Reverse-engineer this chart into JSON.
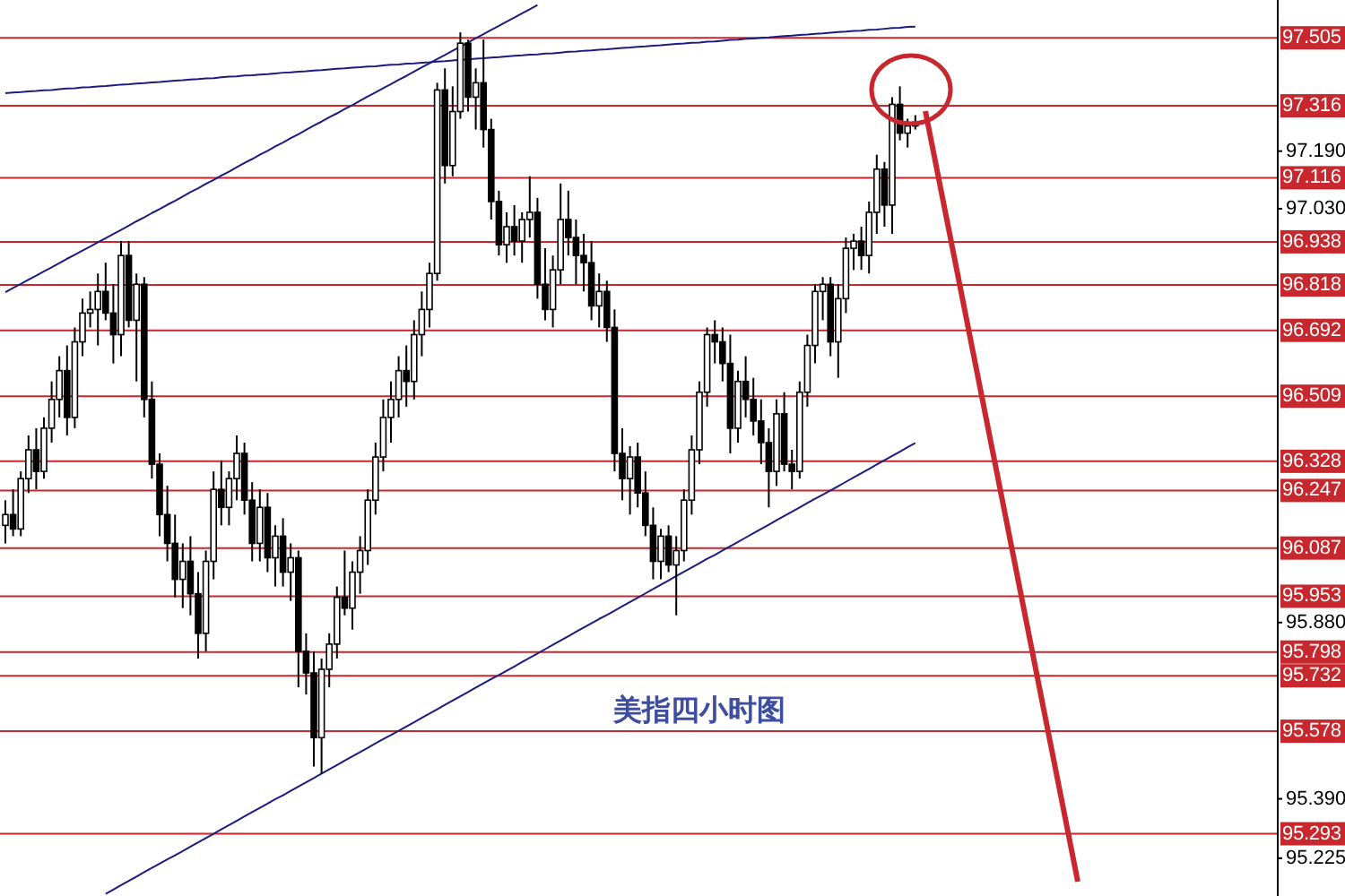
{
  "chart_data": {
    "type": "candlestick",
    "title": "美指四小时图",
    "categories": [
      null,
      null,
      null,
      null,
      null,
      null,
      null,
      null,
      null,
      null,
      null,
      null,
      null,
      null,
      null,
      null,
      null,
      null,
      null,
      null,
      null,
      null,
      null,
      null,
      null,
      null,
      null,
      null,
      null,
      null,
      null,
      null,
      null,
      null,
      null,
      null,
      null,
      null,
      null,
      null,
      null,
      null,
      null,
      null,
      null,
      null,
      null,
      null,
      null,
      null,
      null,
      null,
      null,
      null,
      null,
      null,
      null,
      null,
      null,
      null,
      null,
      null,
      null,
      null,
      null,
      null,
      null,
      null,
      null,
      null,
      null,
      null,
      null,
      null,
      null,
      null,
      null,
      null,
      null,
      null,
      null,
      null,
      null,
      null,
      null,
      null,
      null,
      null,
      null,
      null,
      null,
      null,
      null,
      null,
      null,
      null,
      null,
      null,
      null,
      null,
      null,
      null,
      null,
      null,
      null,
      null,
      null,
      null,
      null,
      null,
      null,
      null,
      null,
      null,
      null,
      null,
      null,
      null,
      null
    ],
    "ohlc": [
      [
        96.15,
        96.22,
        96.1,
        96.18
      ],
      [
        96.18,
        96.25,
        96.12,
        96.14
      ],
      [
        96.14,
        96.3,
        96.12,
        96.28
      ],
      [
        96.28,
        96.4,
        96.24,
        96.36
      ],
      [
        96.36,
        96.42,
        96.25,
        96.3
      ],
      [
        96.3,
        96.45,
        96.28,
        96.42
      ],
      [
        96.42,
        96.55,
        96.38,
        96.5
      ],
      [
        96.5,
        96.62,
        96.45,
        96.58
      ],
      [
        96.58,
        96.65,
        96.4,
        96.45
      ],
      [
        96.45,
        96.7,
        96.42,
        96.66
      ],
      [
        96.66,
        96.78,
        96.62,
        96.74
      ],
      [
        96.74,
        96.8,
        96.7,
        96.75
      ],
      [
        96.75,
        96.85,
        96.65,
        96.8
      ],
      [
        96.8,
        96.88,
        96.72,
        96.74
      ],
      [
        96.74,
        96.82,
        96.6,
        96.68
      ],
      [
        96.68,
        96.94,
        96.62,
        96.9
      ],
      [
        96.9,
        96.94,
        96.7,
        96.72
      ],
      [
        96.72,
        96.85,
        96.55,
        96.82
      ],
      [
        96.82,
        96.84,
        96.45,
        96.5
      ],
      [
        96.5,
        96.55,
        96.28,
        96.32
      ],
      [
        96.32,
        96.35,
        96.12,
        96.18
      ],
      [
        96.18,
        96.26,
        96.05,
        96.1
      ],
      [
        96.1,
        96.18,
        95.95,
        96.0
      ],
      [
        96.0,
        96.1,
        95.92,
        96.05
      ],
      [
        96.05,
        96.12,
        95.9,
        95.96
      ],
      [
        95.96,
        96.02,
        95.78,
        95.85
      ],
      [
        95.85,
        96.08,
        95.8,
        96.05
      ],
      [
        96.05,
        96.3,
        96.0,
        96.25
      ],
      [
        96.25,
        96.33,
        96.15,
        96.2
      ],
      [
        96.2,
        96.3,
        96.15,
        96.28
      ],
      [
        96.28,
        96.4,
        96.22,
        96.35
      ],
      [
        96.35,
        96.38,
        96.18,
        96.22
      ],
      [
        96.22,
        96.27,
        96.05,
        96.1
      ],
      [
        96.1,
        96.25,
        96.05,
        96.2
      ],
      [
        96.2,
        96.24,
        96.02,
        96.06
      ],
      [
        96.06,
        96.15,
        95.98,
        96.12
      ],
      [
        96.12,
        96.17,
        95.98,
        96.02
      ],
      [
        96.02,
        96.1,
        95.94,
        96.06
      ],
      [
        96.06,
        96.08,
        95.7,
        95.8
      ],
      [
        95.8,
        95.85,
        95.68,
        95.74
      ],
      [
        95.74,
        95.8,
        95.48,
        95.56
      ],
      [
        95.56,
        95.78,
        95.46,
        95.75
      ],
      [
        95.75,
        95.85,
        95.7,
        95.82
      ],
      [
        95.82,
        95.98,
        95.78,
        95.95
      ],
      [
        95.95,
        96.08,
        95.9,
        95.92
      ],
      [
        95.92,
        96.05,
        95.86,
        96.02
      ],
      [
        96.02,
        96.12,
        95.96,
        96.08
      ],
      [
        96.08,
        96.25,
        96.04,
        96.22
      ],
      [
        96.22,
        96.38,
        96.18,
        96.34
      ],
      [
        96.34,
        96.5,
        96.3,
        96.45
      ],
      [
        96.45,
        96.55,
        96.38,
        96.5
      ],
      [
        96.5,
        96.62,
        96.45,
        96.58
      ],
      [
        96.58,
        96.65,
        96.48,
        96.55
      ],
      [
        96.55,
        96.72,
        96.5,
        96.68
      ],
      [
        96.68,
        96.8,
        96.62,
        96.75
      ],
      [
        96.75,
        96.88,
        96.7,
        96.85
      ],
      [
        96.85,
        97.38,
        96.83,
        97.36
      ],
      [
        97.36,
        97.42,
        97.1,
        97.15
      ],
      [
        97.15,
        97.37,
        97.12,
        97.3
      ],
      [
        97.3,
        97.52,
        97.28,
        97.49
      ],
      [
        97.49,
        97.5,
        97.3,
        97.34
      ],
      [
        97.34,
        97.42,
        97.25,
        97.38
      ],
      [
        97.38,
        97.5,
        97.2,
        97.25
      ],
      [
        97.25,
        97.28,
        97.0,
        97.05
      ],
      [
        97.05,
        97.08,
        96.9,
        96.93
      ],
      [
        96.93,
        97.02,
        96.88,
        96.98
      ],
      [
        96.98,
        97.04,
        96.9,
        96.94
      ],
      [
        96.94,
        97.02,
        96.88,
        97.0
      ],
      [
        97.0,
        97.12,
        96.95,
        97.02
      ],
      [
        97.02,
        97.06,
        96.78,
        96.82
      ],
      [
        96.82,
        96.92,
        96.72,
        96.75
      ],
      [
        96.75,
        96.9,
        96.7,
        96.86
      ],
      [
        96.86,
        97.1,
        96.82,
        97.0
      ],
      [
        97.0,
        97.08,
        96.9,
        96.95
      ],
      [
        96.95,
        97.0,
        96.82,
        96.9
      ],
      [
        96.9,
        96.96,
        96.8,
        96.88
      ],
      [
        96.88,
        96.94,
        96.72,
        96.76
      ],
      [
        96.76,
        96.85,
        96.7,
        96.8
      ],
      [
        96.8,
        96.83,
        96.66,
        96.7
      ],
      [
        96.7,
        96.75,
        96.3,
        96.35
      ],
      [
        96.35,
        96.42,
        96.22,
        96.28
      ],
      [
        96.28,
        96.37,
        96.18,
        96.34
      ],
      [
        96.34,
        96.38,
        96.2,
        96.24
      ],
      [
        96.24,
        96.3,
        96.12,
        96.15
      ],
      [
        96.15,
        96.2,
        96.0,
        96.05
      ],
      [
        96.05,
        96.14,
        96.0,
        96.12
      ],
      [
        96.12,
        96.15,
        96.02,
        96.04
      ],
      [
        96.04,
        96.12,
        95.9,
        96.08
      ],
      [
        96.08,
        96.25,
        96.05,
        96.22
      ],
      [
        96.22,
        96.4,
        96.18,
        96.36
      ],
      [
        96.36,
        96.55,
        96.32,
        96.52
      ],
      [
        96.52,
        96.7,
        96.48,
        96.68
      ],
      [
        96.68,
        96.72,
        96.6,
        96.66
      ],
      [
        96.66,
        96.7,
        96.55,
        96.6
      ],
      [
        96.6,
        96.68,
        96.35,
        96.42
      ],
      [
        96.42,
        96.58,
        96.38,
        96.55
      ],
      [
        96.55,
        96.62,
        96.45,
        96.5
      ],
      [
        96.5,
        96.56,
        96.4,
        96.44
      ],
      [
        96.44,
        96.5,
        96.32,
        96.38
      ],
      [
        96.38,
        96.42,
        96.2,
        96.3
      ],
      [
        96.3,
        96.5,
        96.26,
        96.46
      ],
      [
        96.46,
        96.52,
        96.3,
        96.32
      ],
      [
        96.32,
        96.36,
        96.25,
        96.3
      ],
      [
        96.3,
        96.55,
        96.28,
        96.52
      ],
      [
        96.52,
        96.68,
        96.48,
        96.65
      ],
      [
        96.65,
        96.82,
        96.6,
        96.8
      ],
      [
        96.8,
        96.84,
        96.72,
        96.82
      ],
      [
        96.82,
        96.84,
        96.62,
        96.66
      ],
      [
        96.66,
        96.82,
        96.56,
        96.78
      ],
      [
        96.78,
        96.95,
        96.74,
        96.92
      ],
      [
        96.92,
        96.96,
        96.86,
        96.94
      ],
      [
        96.94,
        96.98,
        96.86,
        96.9
      ],
      [
        96.9,
        97.05,
        96.85,
        97.02
      ],
      [
        97.02,
        97.18,
        96.96,
        97.14
      ],
      [
        97.14,
        97.16,
        96.98,
        97.04
      ],
      [
        97.04,
        97.34,
        96.96,
        97.32
      ],
      [
        97.32,
        97.37,
        97.22,
        97.24
      ],
      [
        97.24,
        97.28,
        97.2,
        97.26
      ],
      [
        97.26,
        97.29,
        97.25,
        97.27
      ]
    ],
    "series": [
      {
        "type": "line",
        "color": "#1c1c80",
        "values": [
          96.798,
          96.81,
          96.821,
          96.833,
          96.844,
          96.856,
          96.867,
          96.879,
          96.891,
          96.902,
          96.914,
          96.925,
          96.937,
          96.948,
          96.96,
          96.971,
          96.983,
          96.995,
          97.006,
          97.018,
          97.029,
          97.041,
          97.052,
          97.064,
          97.076,
          97.087,
          97.099,
          97.11,
          97.122,
          97.133,
          97.145,
          97.157,
          97.168,
          97.18,
          97.191,
          97.203,
          97.214,
          97.226,
          97.237,
          97.249,
          97.261,
          97.272,
          97.284,
          97.295,
          97.307,
          97.318,
          97.33,
          97.342,
          97.353,
          97.365,
          97.376,
          97.388,
          97.399,
          97.411,
          97.423,
          97.434,
          97.446,
          97.457,
          97.469,
          97.48,
          97.492,
          97.504,
          97.515,
          97.527,
          97.538,
          97.55,
          97.561,
          97.573,
          97.584,
          97.596,
          null,
          null,
          null,
          null,
          null,
          null,
          null,
          null,
          null,
          null,
          null,
          null,
          null,
          null,
          null,
          null,
          null,
          null,
          null,
          null,
          null,
          null,
          null,
          null,
          null,
          null,
          null,
          null,
          null,
          null,
          null,
          null,
          null,
          null,
          null,
          null,
          null,
          null,
          null,
          null,
          null,
          null,
          null,
          null,
          null,
          null,
          null,
          null,
          null
        ]
      },
      {
        "type": "line",
        "color": "#1c1c80",
        "values": [
          97.351,
          97.353,
          97.354,
          97.356,
          97.357,
          97.359,
          97.36,
          97.362,
          97.364,
          97.365,
          97.367,
          97.368,
          97.37,
          97.371,
          97.373,
          97.375,
          97.376,
          97.378,
          97.379,
          97.381,
          97.382,
          97.384,
          97.386,
          97.387,
          97.389,
          97.39,
          97.392,
          97.393,
          97.395,
          97.397,
          97.398,
          97.4,
          97.401,
          97.403,
          97.404,
          97.406,
          97.408,
          97.409,
          97.411,
          97.412,
          97.414,
          97.415,
          97.417,
          97.419,
          97.42,
          97.422,
          97.423,
          97.425,
          97.426,
          97.428,
          97.43,
          97.431,
          97.433,
          97.434,
          97.436,
          97.437,
          97.439,
          97.44,
          97.442,
          97.444,
          97.445,
          97.447,
          97.448,
          97.45,
          97.451,
          97.453,
          97.455,
          97.456,
          97.458,
          97.459,
          97.461,
          97.462,
          97.464,
          97.466,
          97.467,
          97.469,
          97.47,
          97.472,
          97.473,
          97.475,
          97.477,
          97.478,
          97.48,
          97.481,
          97.483,
          97.484,
          97.486,
          97.488,
          97.489,
          97.491,
          97.492,
          97.494,
          97.495,
          97.497,
          97.499,
          97.5,
          97.502,
          97.503,
          97.505,
          97.506,
          97.508,
          97.51,
          97.511,
          97.513,
          97.514,
          97.516,
          97.517,
          97.519,
          97.521,
          97.522,
          97.524,
          97.525,
          97.527,
          97.528,
          97.53,
          97.532,
          97.533,
          97.535,
          97.536
        ]
      },
      {
        "type": "line",
        "color": "#1c1c80",
        "values": [
          null,
          null,
          null,
          null,
          null,
          null,
          null,
          null,
          null,
          null,
          null,
          null,
          null,
          95.126,
          95.138,
          95.15,
          95.162,
          95.174,
          95.186,
          95.198,
          95.21,
          95.222,
          95.233,
          95.245,
          95.257,
          95.269,
          95.281,
          95.293,
          95.305,
          95.317,
          95.329,
          95.341,
          95.353,
          95.365,
          95.377,
          95.389,
          95.4,
          95.412,
          95.424,
          95.436,
          95.448,
          95.46,
          95.472,
          95.484,
          95.496,
          95.508,
          95.52,
          95.532,
          95.544,
          95.556,
          95.567,
          95.579,
          95.591,
          95.603,
          95.615,
          95.627,
          95.639,
          95.651,
          95.663,
          95.675,
          95.687,
          95.699,
          95.711,
          95.723,
          95.734,
          95.746,
          95.758,
          95.77,
          95.782,
          95.794,
          95.806,
          95.818,
          95.83,
          95.842,
          95.854,
          95.866,
          95.878,
          95.89,
          95.901,
          95.913,
          95.925,
          95.937,
          95.949,
          95.961,
          95.973,
          95.985,
          95.997,
          96.009,
          96.021,
          96.033,
          96.045,
          96.057,
          96.068,
          96.08,
          96.092,
          96.104,
          96.116,
          96.128,
          96.14,
          96.152,
          96.164,
          96.176,
          96.188,
          96.2,
          96.212,
          96.224,
          96.235,
          96.247,
          96.259,
          96.271,
          96.283,
          96.295,
          96.307,
          96.319,
          96.331,
          96.343,
          96.355,
          96.367,
          96.379
        ]
      }
    ],
    "ylim": [
      95.12,
      97.61
    ],
    "yticks": [
      {
        "value": 97.19,
        "label": "97.190"
      },
      {
        "value": 97.03,
        "label": "97.030"
      },
      {
        "value": 95.88,
        "label": "95.880"
      },
      {
        "value": 95.39,
        "label": "95.390"
      },
      {
        "value": 95.225,
        "label": "95.225"
      }
    ],
    "ref_lines": [
      {
        "axis": "y",
        "value": 97.505,
        "label": "97.505",
        "color": "#c8282d"
      },
      {
        "axis": "y",
        "value": 97.316,
        "label": "97.316",
        "color": "#c8282d"
      },
      {
        "axis": "y",
        "value": 97.116,
        "label": "97.116",
        "color": "#c8282d"
      },
      {
        "axis": "y",
        "value": 96.938,
        "label": "96.938",
        "color": "#c8282d"
      },
      {
        "axis": "y",
        "value": 96.818,
        "label": "96.818",
        "color": "#c8282d"
      },
      {
        "axis": "y",
        "value": 96.692,
        "label": "96.692",
        "color": "#c8282d"
      },
      {
        "axis": "y",
        "value": 96.509,
        "label": "96.509",
        "color": "#c8282d"
      },
      {
        "axis": "y",
        "value": 96.328,
        "label": "96.328",
        "color": "#c8282d"
      },
      {
        "axis": "y",
        "value": 96.247,
        "label": "96.247",
        "color": "#c8282d"
      },
      {
        "axis": "y",
        "value": 96.087,
        "label": "96.087",
        "color": "#c8282d"
      },
      {
        "axis": "y",
        "value": 95.953,
        "label": "95.953",
        "color": "#c8282d"
      },
      {
        "axis": "y",
        "value": 95.798,
        "label": "95.798",
        "color": "#c8282d"
      },
      {
        "axis": "y",
        "value": 95.732,
        "label": "95.732",
        "color": "#c8282d"
      },
      {
        "axis": "y",
        "value": 95.578,
        "label": "95.578",
        "color": "#c8282d"
      },
      {
        "axis": "y",
        "value": 95.293,
        "label": "95.293",
        "color": "#c8282d"
      }
    ]
  }
}
